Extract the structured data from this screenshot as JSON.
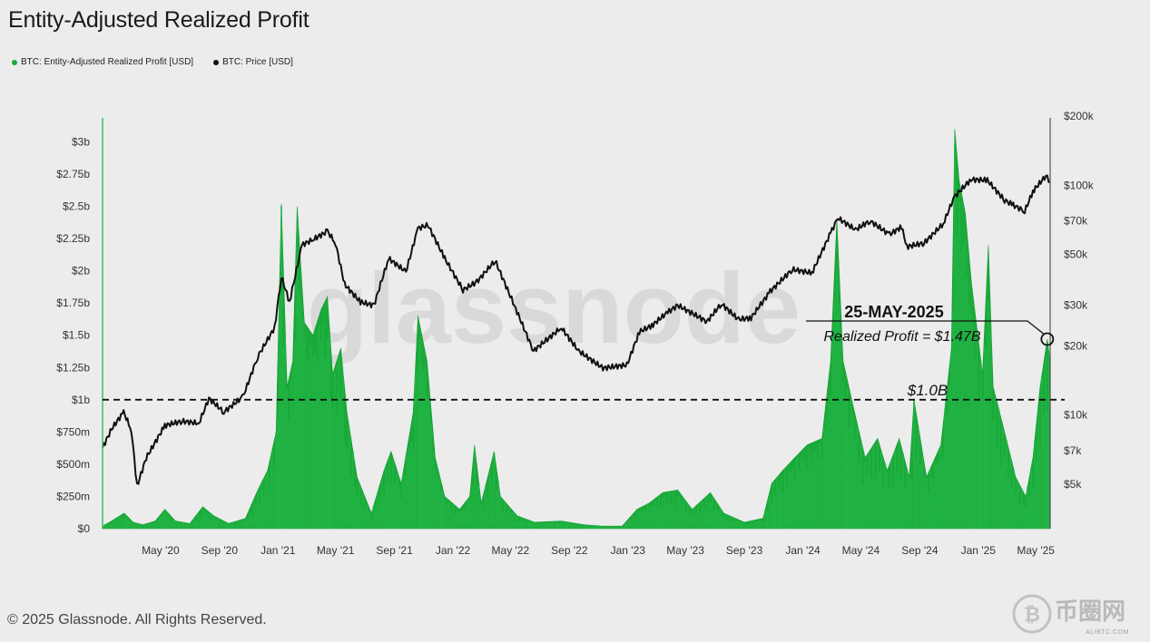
{
  "title": "Entity-Adjusted Realized Profit",
  "legend": [
    {
      "label": "BTC: Entity-Adjusted Realized Profit [USD]",
      "color": "#1aaa3a"
    },
    {
      "label": "BTC: Price [USD]",
      "color": "#111111"
    }
  ],
  "footer": "© 2025 Glassnode. All Rights Reserved.",
  "watermark": "glassnode",
  "brand": {
    "name": "币圈网",
    "url": "ALIBTC.COM"
  },
  "annotation": {
    "date": "25-MAY-2025",
    "text": "Realized Profit = $1.47B",
    "threshold_label": "$1.0B"
  },
  "chart_data": {
    "type": "area",
    "title": "Entity-Adjusted Realized Profit",
    "x_range": [
      "2020-01-01",
      "2025-05-31"
    ],
    "x_ticks": [
      {
        "label": "May '20",
        "date": "2020-05-01"
      },
      {
        "label": "Sep '20",
        "date": "2020-09-01"
      },
      {
        "label": "Jan '21",
        "date": "2021-01-01"
      },
      {
        "label": "May '21",
        "date": "2021-05-01"
      },
      {
        "label": "Sep '21",
        "date": "2021-09-01"
      },
      {
        "label": "Jan '22",
        "date": "2022-01-01"
      },
      {
        "label": "May '22",
        "date": "2022-05-01"
      },
      {
        "label": "Sep '22",
        "date": "2022-09-01"
      },
      {
        "label": "Jan '23",
        "date": "2023-01-01"
      },
      {
        "label": "May '23",
        "date": "2023-05-01"
      },
      {
        "label": "Sep '23",
        "date": "2023-09-01"
      },
      {
        "label": "Jan '24",
        "date": "2024-01-01"
      },
      {
        "label": "May '24",
        "date": "2024-05-01"
      },
      {
        "label": "Sep '24",
        "date": "2024-09-01"
      },
      {
        "label": "Jan '25",
        "date": "2025-01-01"
      },
      {
        "label": "May '25",
        "date": "2025-05-01"
      }
    ],
    "y_left": {
      "range": [
        0,
        3.2
      ],
      "unit": "billion USD",
      "ticks": [
        {
          "label": "$0",
          "value": 0
        },
        {
          "label": "$250m",
          "value": 0.25
        },
        {
          "label": "$500m",
          "value": 0.5
        },
        {
          "label": "$750m",
          "value": 0.75
        },
        {
          "label": "$1b",
          "value": 1.0
        },
        {
          "label": "$1.25b",
          "value": 1.25
        },
        {
          "label": "$1.5b",
          "value": 1.5
        },
        {
          "label": "$1.75b",
          "value": 1.75
        },
        {
          "label": "$2b",
          "value": 2.0
        },
        {
          "label": "$2.25b",
          "value": 2.25
        },
        {
          "label": "$2.5b",
          "value": 2.5
        },
        {
          "label": "$2.75b",
          "value": 2.75
        },
        {
          "label": "$3b",
          "value": 3.0
        }
      ]
    },
    "y_right": {
      "scale": "log",
      "range": [
        3200,
        200000
      ],
      "ticks": [
        {
          "label": "$5k",
          "value": 5000
        },
        {
          "label": "$7k",
          "value": 7000
        },
        {
          "label": "$10k",
          "value": 10000
        },
        {
          "label": "$20k",
          "value": 20000
        },
        {
          "label": "$30k",
          "value": 30000
        },
        {
          "label": "$50k",
          "value": 50000
        },
        {
          "label": "$70k",
          "value": 70000
        },
        {
          "label": "$100k",
          "value": 100000
        },
        {
          "label": "$200k",
          "value": 200000
        }
      ]
    },
    "threshold": 1.0,
    "series": [
      {
        "name": "BTC: Entity-Adjusted Realized Profit [USD]",
        "color": "#1aaa3a",
        "axis": "left",
        "points": [
          [
            "2020-01-01",
            0.02
          ],
          [
            "2020-01-20",
            0.06
          ],
          [
            "2020-02-15",
            0.12
          ],
          [
            "2020-03-05",
            0.05
          ],
          [
            "2020-03-25",
            0.03
          ],
          [
            "2020-04-20",
            0.06
          ],
          [
            "2020-05-10",
            0.15
          ],
          [
            "2020-06-01",
            0.06
          ],
          [
            "2020-07-01",
            0.04
          ],
          [
            "2020-07-28",
            0.17
          ],
          [
            "2020-08-20",
            0.1
          ],
          [
            "2020-09-20",
            0.04
          ],
          [
            "2020-10-25",
            0.08
          ],
          [
            "2020-11-20",
            0.3
          ],
          [
            "2020-12-10",
            0.45
          ],
          [
            "2020-12-28",
            0.75
          ],
          [
            "2021-01-08",
            2.52
          ],
          [
            "2021-01-20",
            1.1
          ],
          [
            "2021-02-01",
            1.3
          ],
          [
            "2021-02-10",
            2.5
          ],
          [
            "2021-02-25",
            1.6
          ],
          [
            "2021-03-15",
            1.5
          ],
          [
            "2021-04-01",
            1.7
          ],
          [
            "2021-04-14",
            1.8
          ],
          [
            "2021-04-25",
            1.2
          ],
          [
            "2021-05-12",
            1.4
          ],
          [
            "2021-05-25",
            0.9
          ],
          [
            "2021-06-15",
            0.4
          ],
          [
            "2021-07-15",
            0.12
          ],
          [
            "2021-08-10",
            0.45
          ],
          [
            "2021-08-25",
            0.6
          ],
          [
            "2021-09-15",
            0.35
          ],
          [
            "2021-10-10",
            0.9
          ],
          [
            "2021-10-20",
            1.65
          ],
          [
            "2021-11-08",
            1.3
          ],
          [
            "2021-11-25",
            0.55
          ],
          [
            "2021-12-15",
            0.25
          ],
          [
            "2022-01-15",
            0.15
          ],
          [
            "2022-02-05",
            0.25
          ],
          [
            "2022-02-15",
            0.65
          ],
          [
            "2022-03-01",
            0.2
          ],
          [
            "2022-03-28",
            0.6
          ],
          [
            "2022-04-10",
            0.25
          ],
          [
            "2022-05-15",
            0.1
          ],
          [
            "2022-06-20",
            0.05
          ],
          [
            "2022-08-15",
            0.06
          ],
          [
            "2022-10-01",
            0.03
          ],
          [
            "2022-11-10",
            0.02
          ],
          [
            "2022-12-20",
            0.02
          ],
          [
            "2023-01-20",
            0.15
          ],
          [
            "2023-02-15",
            0.2
          ],
          [
            "2023-03-15",
            0.28
          ],
          [
            "2023-04-15",
            0.3
          ],
          [
            "2023-05-15",
            0.15
          ],
          [
            "2023-06-22",
            0.28
          ],
          [
            "2023-07-20",
            0.12
          ],
          [
            "2023-09-01",
            0.05
          ],
          [
            "2023-10-10",
            0.08
          ],
          [
            "2023-10-28",
            0.35
          ],
          [
            "2023-11-20",
            0.45
          ],
          [
            "2023-12-15",
            0.55
          ],
          [
            "2024-01-10",
            0.65
          ],
          [
            "2024-02-10",
            0.7
          ],
          [
            "2024-02-28",
            1.3
          ],
          [
            "2024-03-12",
            2.4
          ],
          [
            "2024-03-25",
            1.3
          ],
          [
            "2024-04-15",
            0.95
          ],
          [
            "2024-05-10",
            0.55
          ],
          [
            "2024-06-05",
            0.7
          ],
          [
            "2024-06-25",
            0.45
          ],
          [
            "2024-07-20",
            0.7
          ],
          [
            "2024-08-10",
            0.4
          ],
          [
            "2024-08-20",
            1.0
          ],
          [
            "2024-09-15",
            0.4
          ],
          [
            "2024-10-15",
            0.65
          ],
          [
            "2024-11-06",
            1.4
          ],
          [
            "2024-11-13",
            3.1
          ],
          [
            "2024-11-22",
            2.7
          ],
          [
            "2024-12-05",
            2.45
          ],
          [
            "2024-12-18",
            1.9
          ],
          [
            "2025-01-10",
            1.2
          ],
          [
            "2025-01-22",
            2.2
          ],
          [
            "2025-02-01",
            1.1
          ],
          [
            "2025-02-25",
            0.75
          ],
          [
            "2025-03-20",
            0.4
          ],
          [
            "2025-04-10",
            0.25
          ],
          [
            "2025-04-25",
            0.55
          ],
          [
            "2025-05-10",
            1.1
          ],
          [
            "2025-05-25",
            1.47
          ],
          [
            "2025-05-31",
            1.3
          ]
        ]
      },
      {
        "name": "BTC: Price [USD]",
        "color": "#111111",
        "axis": "right",
        "points": [
          [
            "2020-01-01",
            7200
          ],
          [
            "2020-01-20",
            8700
          ],
          [
            "2020-02-14",
            10300
          ],
          [
            "2020-03-01",
            8600
          ],
          [
            "2020-03-13",
            4900
          ],
          [
            "2020-04-01",
            6500
          ],
          [
            "2020-05-10",
            9000
          ],
          [
            "2020-06-15",
            9400
          ],
          [
            "2020-07-20",
            9200
          ],
          [
            "2020-08-10",
            11800
          ],
          [
            "2020-09-10",
            10300
          ],
          [
            "2020-10-20",
            12000
          ],
          [
            "2020-11-20",
            18000
          ],
          [
            "2020-12-25",
            24000
          ],
          [
            "2021-01-08",
            40000
          ],
          [
            "2021-01-25",
            31000
          ],
          [
            "2021-02-20",
            55000
          ],
          [
            "2021-03-15",
            58000
          ],
          [
            "2021-04-14",
            63000
          ],
          [
            "2021-05-01",
            56000
          ],
          [
            "2021-05-20",
            37000
          ],
          [
            "2021-06-22",
            31000
          ],
          [
            "2021-07-20",
            30000
          ],
          [
            "2021-08-20",
            48000
          ],
          [
            "2021-09-25",
            42000
          ],
          [
            "2021-10-20",
            65000
          ],
          [
            "2021-11-10",
            67000
          ],
          [
            "2021-12-15",
            48000
          ],
          [
            "2022-01-22",
            35000
          ],
          [
            "2022-02-20",
            38000
          ],
          [
            "2022-03-30",
            47000
          ],
          [
            "2022-05-12",
            29000
          ],
          [
            "2022-06-18",
            19000
          ],
          [
            "2022-08-15",
            24000
          ],
          [
            "2022-09-20",
            19000
          ],
          [
            "2022-11-10",
            16000
          ],
          [
            "2022-12-30",
            16500
          ],
          [
            "2023-01-25",
            23000
          ],
          [
            "2023-02-20",
            24500
          ],
          [
            "2023-03-25",
            28000
          ],
          [
            "2023-04-15",
            30000
          ],
          [
            "2023-06-15",
            25500
          ],
          [
            "2023-07-15",
            30500
          ],
          [
            "2023-08-20",
            26000
          ],
          [
            "2023-09-15",
            26500
          ],
          [
            "2023-10-25",
            34500
          ],
          [
            "2023-12-10",
            43000
          ],
          [
            "2024-01-20",
            41500
          ],
          [
            "2024-02-28",
            62000
          ],
          [
            "2024-03-14",
            72000
          ],
          [
            "2024-04-20",
            64000
          ],
          [
            "2024-05-20",
            70000
          ],
          [
            "2024-06-30",
            61000
          ],
          [
            "2024-07-25",
            66000
          ],
          [
            "2024-08-05",
            54000
          ],
          [
            "2024-09-10",
            56000
          ],
          [
            "2024-10-20",
            68000
          ],
          [
            "2024-11-12",
            89000
          ],
          [
            "2024-12-17",
            106000
          ],
          [
            "2025-01-20",
            105000
          ],
          [
            "2025-02-25",
            86000
          ],
          [
            "2025-03-15",
            82000
          ],
          [
            "2025-04-08",
            77000
          ],
          [
            "2025-04-25",
            94000
          ],
          [
            "2025-05-22",
            110000
          ],
          [
            "2025-05-31",
            104000
          ]
        ]
      }
    ]
  }
}
